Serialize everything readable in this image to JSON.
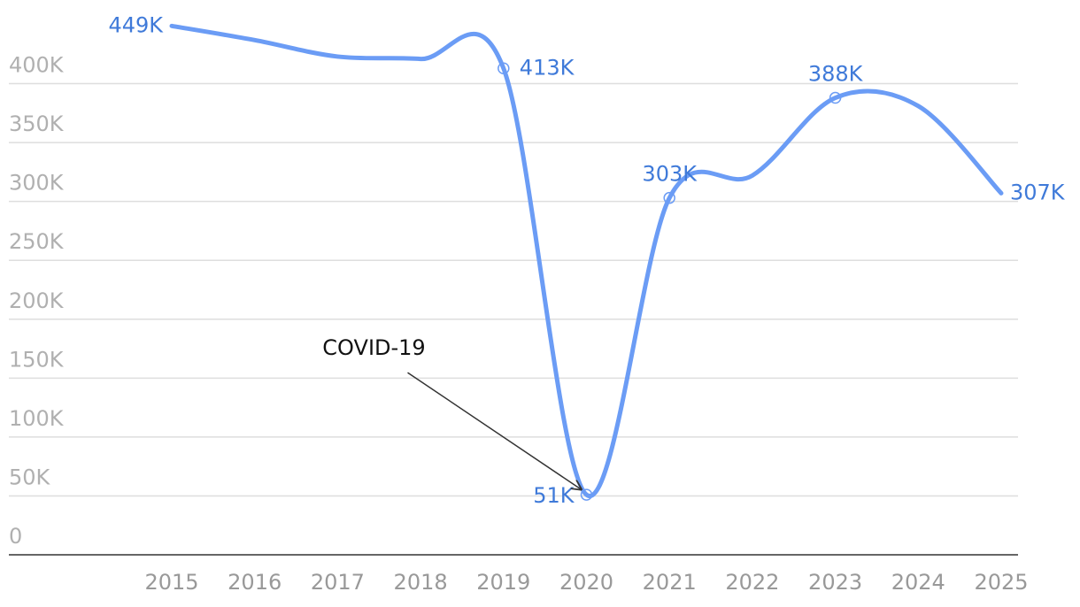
{
  "chart_data": {
    "type": "line",
    "categories": [
      "2015",
      "2016",
      "2017",
      "2018",
      "2019",
      "2020",
      "2021",
      "2022",
      "2023",
      "2024",
      "2025"
    ],
    "series": [
      {
        "name": null,
        "color": "#6b9cf5",
        "values": [
          449000,
          437000,
          423000,
          421000,
          413000,
          51000,
          303000,
          322000,
          388000,
          381000,
          307000
        ],
        "value_labels": [
          "449K",
          null,
          null,
          null,
          "413K",
          "51K",
          "303K",
          null,
          "388K",
          null,
          "307K"
        ]
      }
    ],
    "ylim": [
      0,
      450000
    ],
    "yticks": [
      {
        "value": 0,
        "label": "0"
      },
      {
        "value": 50000,
        "label": "50K"
      },
      {
        "value": 100000,
        "label": "100K"
      },
      {
        "value": 150000,
        "label": "150K"
      },
      {
        "value": 200000,
        "label": "200K"
      },
      {
        "value": 250000,
        "label": "250K"
      },
      {
        "value": 300000,
        "label": "300K"
      },
      {
        "value": 350000,
        "label": "350K"
      },
      {
        "value": 400000,
        "label": "400K"
      }
    ],
    "grid": true,
    "annotations": [
      {
        "text": "COVID-19",
        "x": "2020"
      }
    ]
  }
}
